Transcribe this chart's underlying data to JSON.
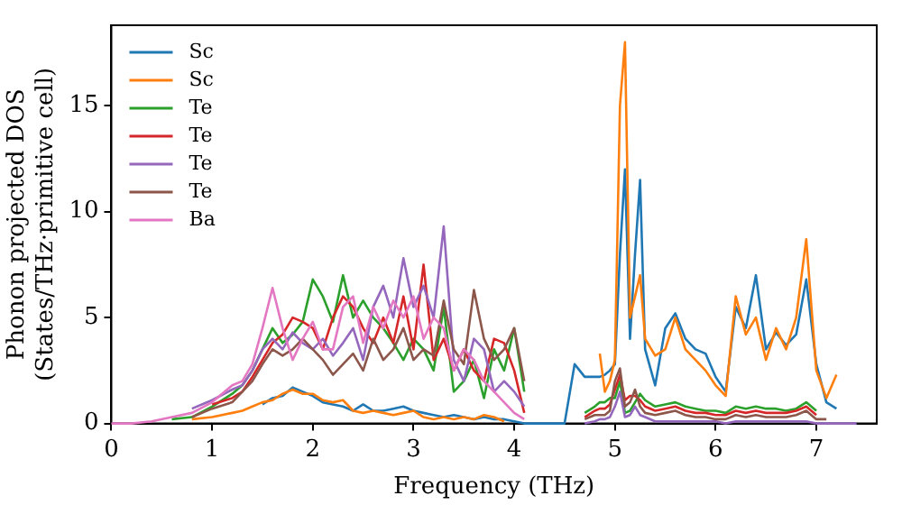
{
  "chart_data": {
    "type": "line",
    "xlabel": "Frequency (THz)",
    "ylabel": "Phonon projected DOS\n(States/THz·primitive cell)",
    "x": [
      0,
      0.2,
      0.4,
      0.6,
      0.8,
      1.0,
      1.2,
      1.3,
      1.4,
      1.5,
      1.6,
      1.7,
      1.8,
      1.9,
      2.0,
      2.1,
      2.2,
      2.3,
      2.4,
      2.5,
      2.6,
      2.7,
      2.8,
      2.9,
      3.0,
      3.1,
      3.2,
      3.3,
      3.4,
      3.5,
      3.6,
      3.7,
      3.8,
      3.9,
      4.0,
      4.1,
      4.2,
      4.3,
      4.4,
      4.5,
      4.6,
      4.7,
      4.8,
      4.85,
      4.9,
      4.95,
      5.0,
      5.05,
      5.1,
      5.15,
      5.2,
      5.25,
      5.3,
      5.4,
      5.5,
      5.6,
      5.7,
      5.8,
      5.9,
      6.0,
      6.1,
      6.2,
      6.3,
      6.4,
      6.5,
      6.6,
      6.7,
      6.8,
      6.9,
      7.0,
      7.1,
      7.2,
      7.3,
      7.4
    ],
    "series": [
      {
        "name": "Sc",
        "color": "#1f77b4",
        "values": [
          null,
          null,
          null,
          null,
          null,
          null,
          null,
          null,
          null,
          0.9,
          1.2,
          1.3,
          1.7,
          1.5,
          1.3,
          1.0,
          0.9,
          0.8,
          0.6,
          0.9,
          0.6,
          0.6,
          0.7,
          0.8,
          0.6,
          0.5,
          0.4,
          0.3,
          0.4,
          0.3,
          0.2,
          0.3,
          0.2,
          0.2,
          0.1,
          0,
          0,
          0,
          0,
          0,
          2.8,
          2.2,
          2.2,
          2.2,
          2.3,
          2.5,
          2.8,
          8,
          12,
          4,
          8,
          11.5,
          3.5,
          1.8,
          4.5,
          5.2,
          4.0,
          3.5,
          3.3,
          2.2,
          1.5,
          5.5,
          4.5,
          7.0,
          3.5,
          4.3,
          3.7,
          4.2,
          6.8,
          2.8,
          1.0,
          0.7,
          null,
          null
        ]
      },
      {
        "name": "Sc",
        "color": "#ff7f0e",
        "values": [
          null,
          null,
          null,
          null,
          0.2,
          0.3,
          0.5,
          0.6,
          0.8,
          1.0,
          1.1,
          1.4,
          1.6,
          1.4,
          1.4,
          1.1,
          1.0,
          1.1,
          0.6,
          0.5,
          0.6,
          0.5,
          0.4,
          0.5,
          0.6,
          0.3,
          0.2,
          0.3,
          0.2,
          0.3,
          0.2,
          0.4,
          0.3,
          0.1,
          null,
          null,
          null,
          null,
          null,
          null,
          null,
          null,
          null,
          3.3,
          1.5,
          2.0,
          3,
          15,
          18,
          5,
          6,
          7,
          4,
          3.2,
          3.5,
          5.0,
          3.5,
          3.0,
          2.5,
          1.8,
          1.3,
          6.0,
          4.2,
          5.0,
          3.0,
          4.5,
          3.5,
          5.0,
          8.7,
          2.5,
          1.2,
          2.3,
          null,
          null
        ]
      },
      {
        "name": "Te",
        "color": "#2ca02c",
        "values": [
          null,
          null,
          null,
          0.2,
          0.3,
          0.8,
          1.4,
          1.8,
          2.5,
          3.5,
          4.5,
          3.8,
          4.2,
          4.8,
          6.8,
          6.0,
          4.8,
          7.0,
          5.0,
          5.8,
          5.0,
          4.5,
          3.8,
          3.0,
          4.0,
          3.5,
          2.5,
          5.5,
          1.5,
          2.0,
          3.0,
          1.2,
          3.5,
          2.5,
          4.5,
          1.5,
          null,
          null,
          null,
          null,
          null,
          0.5,
          0.8,
          1.0,
          1.0,
          1.2,
          1.2,
          2.0,
          0.5,
          0.6,
          1.0,
          1.4,
          1.1,
          0.8,
          0.9,
          1.0,
          0.8,
          0.7,
          0.6,
          0.6,
          0.5,
          0.8,
          0.7,
          0.8,
          0.7,
          0.7,
          0.6,
          0.7,
          1.0,
          0.6,
          null,
          null,
          null,
          null
        ]
      },
      {
        "name": "Te",
        "color": "#d62728",
        "values": [
          null,
          null,
          null,
          null,
          null,
          0.9,
          1.2,
          1.5,
          2.2,
          3.0,
          3.8,
          4.2,
          5.0,
          4.8,
          4.5,
          3.5,
          5.0,
          6.0,
          5.5,
          4.5,
          3.8,
          5.0,
          3.8,
          6.0,
          3.5,
          7.5,
          3.0,
          4.0,
          2.5,
          3.5,
          2.5,
          2.0,
          4.0,
          3.8,
          2.5,
          0.5,
          null,
          null,
          null,
          null,
          null,
          0.3,
          0.6,
          0.7,
          0.7,
          0.9,
          1.6,
          2.3,
          1.1,
          1.3,
          1.3,
          1.1,
          0.8,
          0.6,
          0.7,
          0.8,
          0.6,
          0.5,
          0.5,
          0.4,
          0.4,
          0.6,
          0.5,
          0.6,
          0.5,
          0.5,
          0.5,
          0.6,
          0.8,
          0.4,
          null,
          null,
          null,
          null
        ]
      },
      {
        "name": "Te",
        "color": "#9467bd",
        "values": [
          null,
          null,
          null,
          null,
          0.7,
          1.1,
          1.6,
          1.8,
          2.5,
          3.5,
          4.0,
          3.5,
          4.3,
          3.8,
          3.5,
          4.0,
          3.2,
          3.8,
          4.5,
          3.0,
          5.5,
          6.5,
          5.0,
          7.8,
          5.5,
          6.5,
          5.0,
          9.3,
          3.0,
          2.0,
          4.0,
          3.5,
          1.5,
          2.0,
          1.5,
          0.8,
          null,
          null,
          null,
          null,
          null,
          0,
          0.1,
          0.2,
          0.2,
          0.3,
          0.8,
          1.5,
          0.3,
          0.4,
          0.8,
          0.4,
          0.3,
          0.1,
          0.1,
          0.1,
          0.1,
          0.1,
          0.1,
          0.1,
          0,
          0.1,
          0.1,
          0.1,
          0.1,
          0.1,
          0.1,
          0.1,
          0.1,
          0,
          0,
          0,
          0,
          0
        ]
      },
      {
        "name": "Te",
        "color": "#8c564b",
        "values": [
          null,
          null,
          null,
          null,
          0.3,
          0.7,
          1.0,
          1.5,
          2.0,
          2.8,
          3.5,
          3.2,
          3.5,
          4.0,
          3.5,
          3.0,
          2.3,
          2.8,
          3.3,
          2.5,
          4.0,
          3.0,
          3.5,
          4.5,
          3.0,
          3.5,
          3.2,
          5.8,
          3.5,
          2.8,
          6.3,
          4.0,
          3.0,
          3.5,
          4.5,
          2.0,
          null,
          null,
          null,
          null,
          null,
          0.2,
          0.4,
          0.4,
          0.4,
          0.6,
          2.0,
          2.6,
          0.8,
          1.0,
          1.6,
          0.8,
          0.5,
          0.4,
          0.5,
          0.6,
          0.4,
          0.3,
          0.3,
          0.2,
          0.2,
          0.4,
          0.3,
          0.4,
          0.3,
          0.3,
          0.3,
          0.4,
          0.6,
          0.2,
          0.2,
          null,
          null,
          null
        ]
      },
      {
        "name": "Ba",
        "color": "#e377c2",
        "values": [
          0,
          0,
          0.1,
          0.3,
          0.5,
          1.0,
          1.8,
          2.0,
          2.8,
          4.5,
          6.4,
          4.5,
          3.0,
          4.0,
          4.8,
          3.5,
          3.5,
          5.5,
          6.0,
          3.8,
          5.5,
          4.5,
          5.8,
          5.0,
          6.0,
          4.0,
          5.0,
          4.5,
          2.5,
          3.5,
          3.0,
          2.0,
          1.5,
          1.0,
          0.5,
          0.2,
          null,
          null,
          null,
          null,
          null,
          null,
          null,
          null,
          null,
          null,
          null,
          null,
          null,
          null,
          null,
          null,
          null,
          null,
          null,
          null,
          null,
          null,
          null,
          null,
          null,
          null,
          null,
          null,
          null,
          null,
          null,
          null,
          null,
          null,
          null,
          null,
          null,
          null
        ]
      }
    ],
    "xlim": [
      0,
      7.6
    ],
    "xticks": [
      0,
      1,
      2,
      3,
      4,
      5,
      6,
      7
    ],
    "ylim": [
      0,
      18.8
    ],
    "yticks": [
      0,
      5,
      10,
      15
    ],
    "grid": false,
    "legend": "top left",
    "marker": "none",
    "line_style": "solid"
  }
}
